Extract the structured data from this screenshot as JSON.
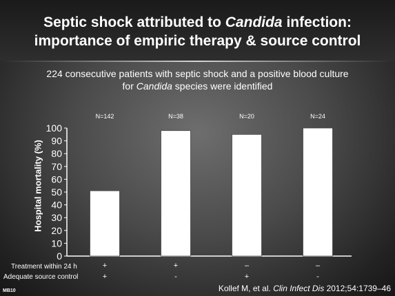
{
  "slide": {
    "title_line1_pre": "Septic shock attributed to ",
    "title_line1_italic": "Candida",
    "title_line1_post": " infection:",
    "title_line2": "importance of empiric therapy & source control",
    "subtitle_line1": "224 consecutive patients with septic shock and a positive blood culture",
    "subtitle_line2_pre": "for ",
    "subtitle_line2_italic": "Candida",
    "subtitle_line2_post": " species were identified",
    "footer_code": "MB10",
    "citation_pre": "Kollef M, et al. ",
    "citation_italic": "Clin Infect Dis",
    "citation_post": " 2012;54:1739–46"
  },
  "rows": {
    "treatment": {
      "label": "Treatment within 24 h",
      "values": [
        "+",
        "+",
        "–",
        "–"
      ]
    },
    "source": {
      "label": "Adequate source control",
      "values": [
        "+",
        "-",
        "+",
        "-"
      ]
    }
  },
  "chart_data": {
    "type": "bar",
    "categories": [
      "N=142",
      "N=38",
      "N=20",
      "N=24"
    ],
    "values": [
      51,
      98,
      95,
      100
    ],
    "ylabel": "Hospital mortality (%)",
    "ylim": [
      0,
      100
    ],
    "yticks": [
      0,
      10,
      20,
      30,
      40,
      50,
      60,
      70,
      80,
      90,
      100
    ],
    "bar_color": "#ffffff",
    "grid": false
  }
}
